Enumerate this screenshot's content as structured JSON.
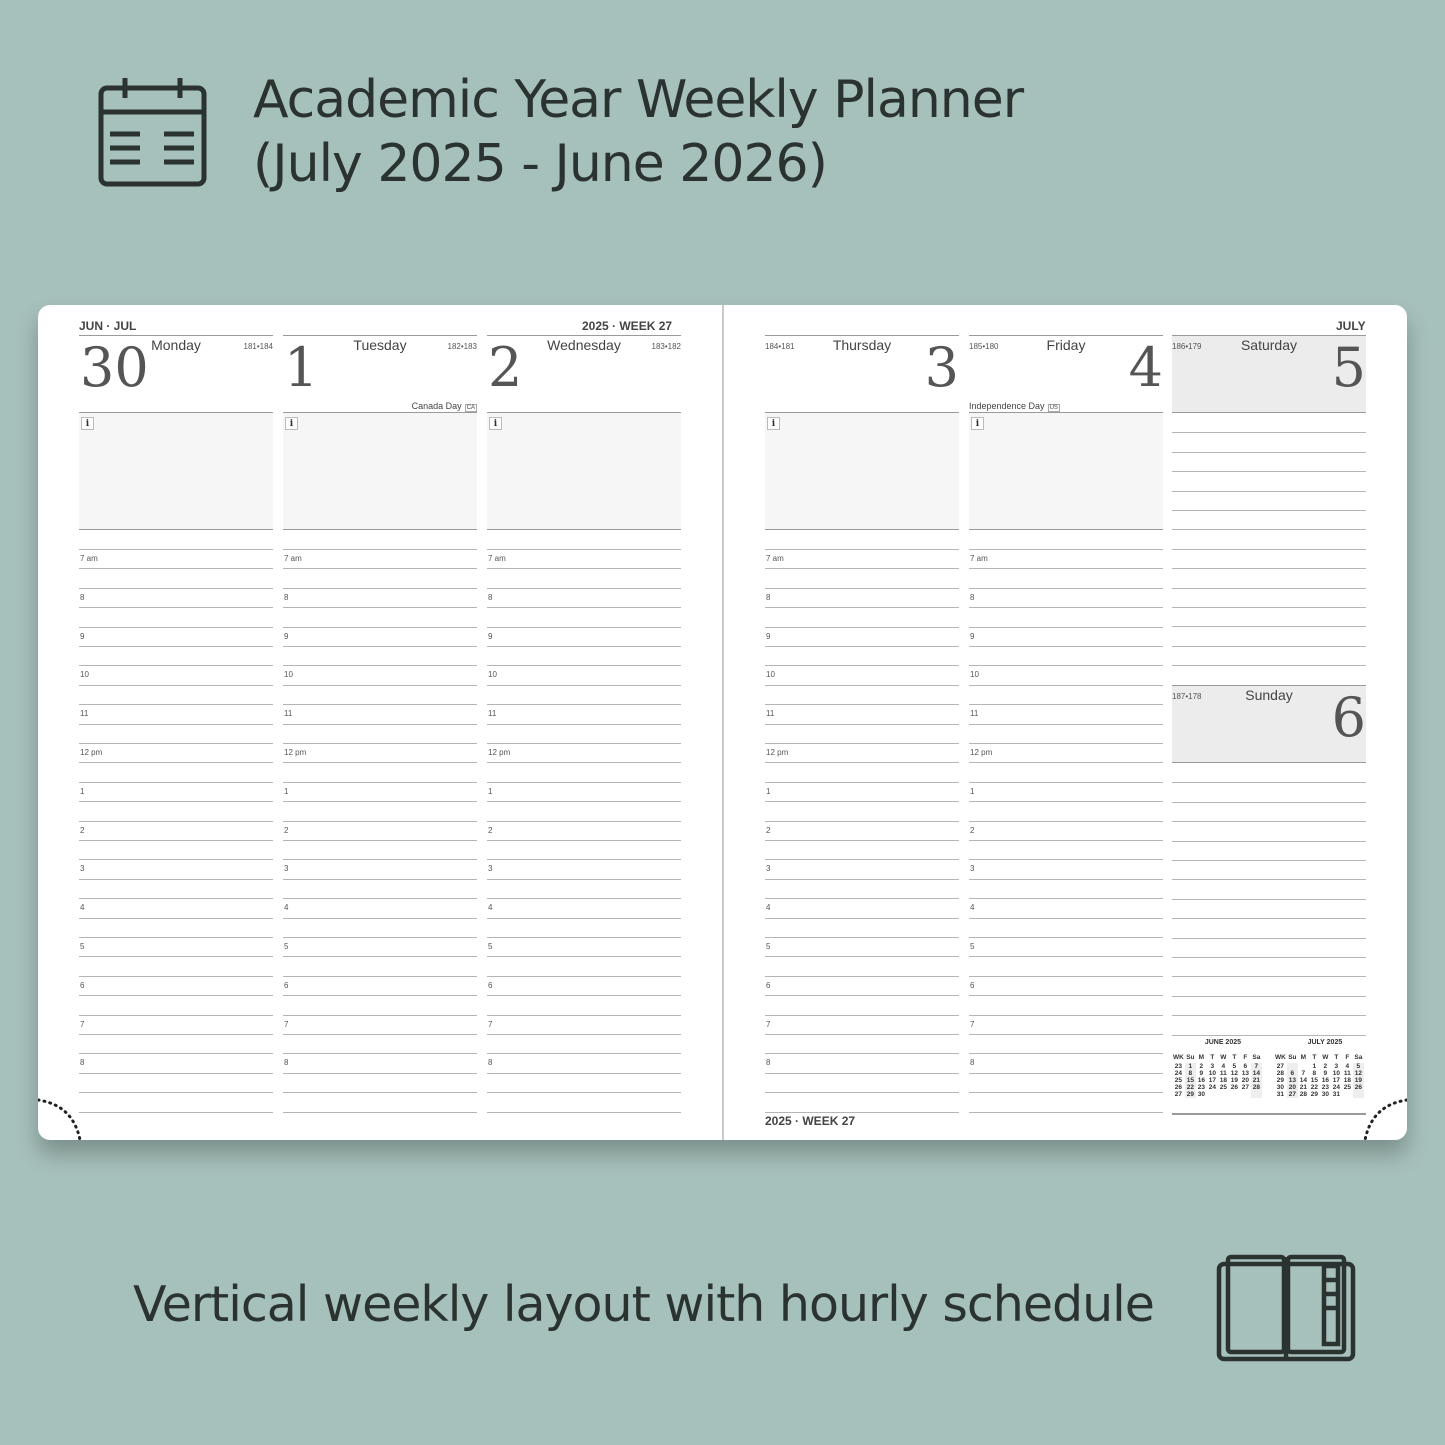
{
  "heading": {
    "line1": "Academic Year Weekly Planner",
    "line2": "(July 2025 - June 2026)"
  },
  "footer": {
    "caption": "Vertical weekly layout with hourly schedule"
  },
  "icons": {
    "top": "calendar-icon",
    "bottom": "planner-book-icon"
  },
  "colors": {
    "background": "#a6c0bb",
    "text": "#2b3330",
    "weekend": "#ececec"
  },
  "planner": {
    "left_header": "JUN · JUL",
    "mid_header": "2025 · WEEK 27",
    "right_header": "JULY",
    "bottom_week": "2025 · WEEK 27",
    "hours": [
      "7 am",
      "8",
      "9",
      "10",
      "11",
      "12 pm",
      "1",
      "2",
      "3",
      "4",
      "5",
      "6",
      "7",
      "8"
    ],
    "days": [
      {
        "num": "30",
        "name": "Monday",
        "count": "181•184",
        "holiday": ""
      },
      {
        "num": "1",
        "name": "Tuesday",
        "count": "182•183",
        "holiday": "Canada Day",
        "tag": "CA"
      },
      {
        "num": "2",
        "name": "Wednesday",
        "count": "183•182",
        "holiday": ""
      },
      {
        "num": "3",
        "name": "Thursday",
        "count": "184•181",
        "holiday": ""
      },
      {
        "num": "4",
        "name": "Friday",
        "count": "185•180",
        "holiday": "Independence Day",
        "tag": "US"
      },
      {
        "num": "5",
        "name": "Saturday",
        "count": "186•179"
      },
      {
        "num": "6",
        "name": "Sunday",
        "count": "187•178"
      }
    ],
    "mini_calendars": [
      {
        "title": "JUNE 2025",
        "head": [
          "WK",
          "Su",
          "M",
          "T",
          "W",
          "T",
          "F",
          "Sa"
        ],
        "rows": [
          [
            "23",
            "1",
            "2",
            "3",
            "4",
            "5",
            "6",
            "7"
          ],
          [
            "24",
            "8",
            "9",
            "10",
            "11",
            "12",
            "13",
            "14"
          ],
          [
            "25",
            "15",
            "16",
            "17",
            "18",
            "19",
            "20",
            "21"
          ],
          [
            "26",
            "22",
            "23",
            "24",
            "25",
            "26",
            "27",
            "28"
          ],
          [
            "27",
            "29",
            "30",
            "",
            "",
            "",
            "",
            ""
          ]
        ]
      },
      {
        "title": "JULY 2025",
        "head": [
          "WK",
          "Su",
          "M",
          "T",
          "W",
          "T",
          "F",
          "Sa"
        ],
        "rows": [
          [
            "27",
            "",
            "",
            "1",
            "2",
            "3",
            "4",
            "5"
          ],
          [
            "28",
            "6",
            "7",
            "8",
            "9",
            "10",
            "11",
            "12"
          ],
          [
            "29",
            "13",
            "14",
            "15",
            "16",
            "17",
            "18",
            "19"
          ],
          [
            "30",
            "20",
            "21",
            "22",
            "23",
            "24",
            "25",
            "26"
          ],
          [
            "31",
            "27",
            "28",
            "29",
            "30",
            "31",
            "",
            ""
          ]
        ]
      }
    ]
  }
}
